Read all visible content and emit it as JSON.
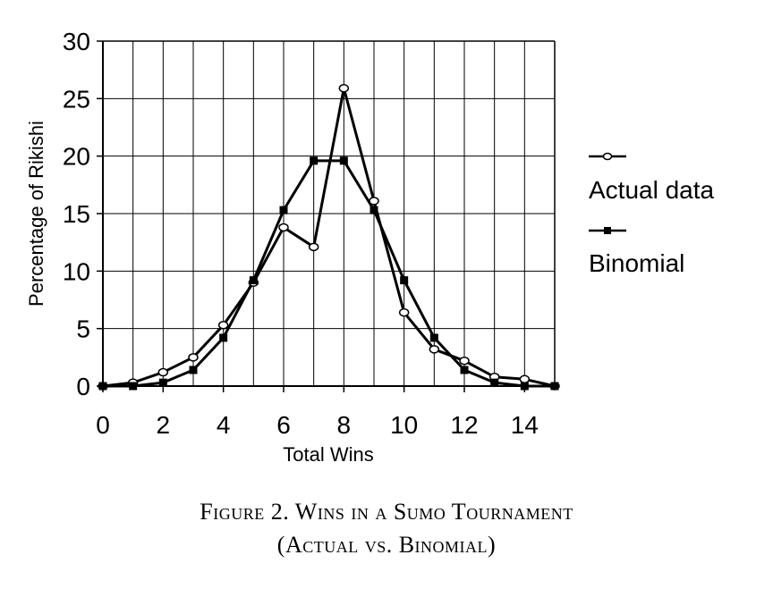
{
  "chart_data": {
    "type": "line",
    "x": [
      0,
      1,
      2,
      3,
      4,
      5,
      6,
      7,
      8,
      9,
      10,
      11,
      12,
      13,
      14,
      15
    ],
    "xlabel": "Total Wins",
    "ylabel": "Percentage of Rikishi",
    "xlim": [
      0,
      15
    ],
    "ylim": [
      0,
      30
    ],
    "xticks": [
      "0",
      "2",
      "4",
      "6",
      "8",
      "10",
      "12",
      "14"
    ],
    "yticks": [
      "0",
      "5",
      "10",
      "15",
      "20",
      "25",
      "30"
    ],
    "grid": true,
    "legend_position": "right",
    "series": [
      {
        "name": "Actual data",
        "marker": "open-circle",
        "values": [
          0,
          0.3,
          1.2,
          2.5,
          5.3,
          9.0,
          13.8,
          12.1,
          25.9,
          16.1,
          6.4,
          3.2,
          2.2,
          0.8,
          0.6,
          0
        ]
      },
      {
        "name": "Binomial",
        "marker": "filled-square",
        "values": [
          0,
          0,
          0.3,
          1.4,
          4.2,
          9.2,
          15.3,
          19.6,
          19.6,
          15.3,
          9.2,
          4.2,
          1.4,
          0.3,
          0,
          0
        ]
      }
    ]
  },
  "caption": {
    "line1": "Figure 2. Wins in a Sumo Tournament",
    "line2": "(Actual vs. Binomial)"
  }
}
